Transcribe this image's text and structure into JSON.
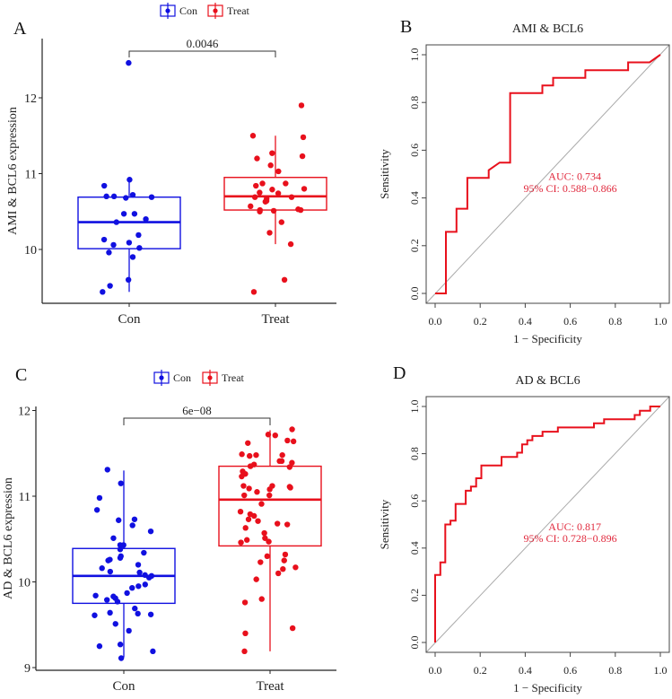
{
  "colors": {
    "con": "#1010e0",
    "treat": "#e8101c",
    "roc": "#e8101c",
    "auc_text": "#e0283c",
    "diag": "#aaaaaa",
    "axis": "#222222"
  },
  "chart_data": [
    {
      "panel": "A",
      "type": "box",
      "ylabel": "AMI & BCL6 expression",
      "categories": [
        "Con",
        "Treat"
      ],
      "legend": {
        "position": "top",
        "entries": [
          "Con",
          "Treat"
        ]
      },
      "yticks": [
        10,
        11,
        12
      ],
      "ylim": [
        9.35,
        12.65
      ],
      "pvalue": "0.0046",
      "boxes": [
        {
          "name": "Con",
          "whisker_low": 9.44,
          "q1": 10.01,
          "median": 10.36,
          "q3": 10.69,
          "whisker_high": 10.91
        },
        {
          "name": "Treat",
          "whisker_low": 10.07,
          "q1": 10.52,
          "median": 10.7,
          "q3": 10.95,
          "whisker_high": 11.5
        }
      ],
      "points": [
        [
          12.46,
          10.72,
          10.7,
          10.7,
          10.68,
          10.92,
          10.84,
          10.69,
          10.47,
          10.47,
          10.36,
          10.4,
          10.19,
          10.13,
          10.09,
          10.06,
          10.02,
          9.96,
          9.9,
          9.6,
          9.52,
          9.44
        ],
        [
          11.9,
          11.48,
          11.5,
          11.27,
          11.23,
          11.2,
          11.11,
          11.03,
          10.87,
          10.87,
          10.84,
          10.8,
          10.79,
          10.75,
          10.74,
          10.63,
          10.69,
          10.69,
          10.67,
          10.64,
          10.57,
          10.52,
          10.52,
          10.53,
          10.51,
          10.5,
          10.36,
          10.22,
          10.07,
          9.6,
          9.44
        ]
      ]
    },
    {
      "panel": "B",
      "type": "line",
      "title": "AMI & BCL6",
      "xlabel": "1 − Specificity",
      "ylabel": "Sensitivity",
      "xlim": [
        0,
        1
      ],
      "ylim": [
        0,
        1
      ],
      "ticks": [
        "0.0",
        "0.2",
        "0.4",
        "0.6",
        "0.8",
        "1.0"
      ],
      "auc_label": "AUC: 0.734",
      "ci_label": "95% CI: 0.588−0.866",
      "x": [
        0,
        0.048,
        0.048,
        0.095,
        0.095,
        0.143,
        0.143,
        0.238,
        0.238,
        0.286,
        0.333,
        0.333,
        0.476,
        0.476,
        0.524,
        0.524,
        0.667,
        0.667,
        0.857,
        0.857,
        0.952,
        1
      ],
      "y": [
        0,
        0,
        0.258,
        0.258,
        0.355,
        0.355,
        0.484,
        0.484,
        0.516,
        0.548,
        0.548,
        0.839,
        0.839,
        0.871,
        0.871,
        0.903,
        0.903,
        0.935,
        0.935,
        0.968,
        0.968,
        1
      ]
    },
    {
      "panel": "C",
      "type": "box",
      "ylabel": "AD & BCL6 expression",
      "categories": [
        "Con",
        "Treat"
      ],
      "legend": {
        "position": "top",
        "entries": [
          "Con",
          "Treat"
        ]
      },
      "yticks": [
        9,
        10,
        11,
        12
      ],
      "ylim": [
        9,
        12
      ],
      "pvalue": "6e−08",
      "boxes": [
        {
          "name": "Con",
          "whisker_low": 9.12,
          "q1": 9.75,
          "median": 10.07,
          "q3": 10.39,
          "whisker_high": 11.3
        },
        {
          "name": "Treat",
          "whisker_low": 9.19,
          "q1": 10.42,
          "median": 10.96,
          "q3": 11.35,
          "whisker_high": 11.77
        }
      ],
      "points": [
        [
          11.31,
          11.15,
          10.98,
          10.84,
          10.72,
          10.73,
          10.66,
          10.59,
          10.51,
          10.43,
          10.43,
          10.38,
          10.34,
          10.3,
          10.28,
          10.26,
          10.25,
          10.2,
          10.16,
          10.12,
          10.11,
          10.08,
          10.07,
          10.05,
          9.97,
          9.95,
          9.93,
          9.87,
          9.84,
          9.83,
          9.81,
          9.79,
          9.77,
          9.69,
          9.63,
          9.64,
          9.62,
          9.61,
          9.51,
          9.43,
          9.27,
          9.25,
          9.19,
          9.11
        ],
        [
          11.78,
          11.71,
          11.72,
          11.62,
          11.65,
          11.64,
          11.48,
          11.49,
          11.47,
          11.48,
          11.41,
          11.41,
          11.39,
          11.37,
          11.34,
          11.35,
          11.29,
          11.26,
          11.23,
          11.12,
          11.11,
          11.1,
          11.09,
          11.08,
          11.12,
          11.05,
          11.01,
          11.01,
          10.91,
          10.77,
          10.71,
          10.67,
          10.73,
          10.79,
          10.82,
          10.68,
          10.63,
          10.57,
          10.49,
          10.47,
          10.51,
          10.46,
          10.32,
          10.3,
          10.25,
          10.23,
          10.17,
          10.15,
          10.1,
          10.03,
          9.8,
          9.76,
          9.46,
          9.4,
          9.19
        ]
      ]
    },
    {
      "panel": "D",
      "type": "line",
      "title": "AD & BCL6",
      "xlabel": "1 − Specificity",
      "ylabel": "Sensitivity",
      "xlim": [
        0,
        1
      ],
      "ylim": [
        0,
        1
      ],
      "ticks": [
        "0.0",
        "0.2",
        "0.4",
        "0.6",
        "0.8",
        "1.0"
      ],
      "auc_label": "AUC: 0.817",
      "ci_label": "95% CI: 0.728−0.896",
      "x": [
        0,
        0,
        0.023,
        0.023,
        0.045,
        0.045,
        0.068,
        0.068,
        0.091,
        0.091,
        0.136,
        0.136,
        0.159,
        0.159,
        0.182,
        0.182,
        0.205,
        0.205,
        0.295,
        0.295,
        0.364,
        0.364,
        0.386,
        0.386,
        0.409,
        0.409,
        0.432,
        0.432,
        0.477,
        0.477,
        0.545,
        0.545,
        0.705,
        0.705,
        0.75,
        0.75,
        0.886,
        0.886,
        0.909,
        0.909,
        0.955,
        0.955,
        1
      ],
      "y": [
        0,
        0.286,
        0.286,
        0.339,
        0.339,
        0.5,
        0.5,
        0.516,
        0.516,
        0.587,
        0.587,
        0.643,
        0.643,
        0.661,
        0.661,
        0.696,
        0.696,
        0.75,
        0.75,
        0.786,
        0.786,
        0.804,
        0.804,
        0.839,
        0.839,
        0.857,
        0.857,
        0.875,
        0.875,
        0.893,
        0.893,
        0.911,
        0.911,
        0.929,
        0.929,
        0.946,
        0.946,
        0.964,
        0.964,
        0.982,
        0.982,
        1,
        1
      ]
    }
  ]
}
